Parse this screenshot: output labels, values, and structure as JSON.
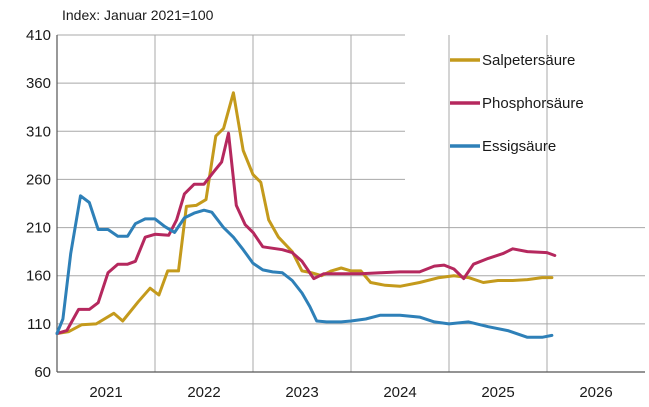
{
  "chart_data": {
    "type": "line",
    "subtitle": "Index: Januar 2021=100",
    "ylim": [
      60,
      410
    ],
    "y_ticks": [
      60,
      110,
      160,
      210,
      260,
      310,
      360,
      410
    ],
    "x_ticks": [
      "2021",
      "2022",
      "2023",
      "2024",
      "2025",
      "2026"
    ],
    "xlim": [
      2021.0,
      2027.0
    ],
    "grid": true,
    "legend_position": "top-right",
    "series": [
      {
        "name": "Salpetersäure",
        "color": "#c49a1c",
        "points": [
          [
            2021.0,
            100
          ],
          [
            2021.12,
            102
          ],
          [
            2021.25,
            109
          ],
          [
            2021.4,
            110
          ],
          [
            2021.58,
            121
          ],
          [
            2021.67,
            113
          ],
          [
            2021.83,
            133
          ],
          [
            2021.95,
            147
          ],
          [
            2022.04,
            140
          ],
          [
            2022.13,
            165
          ],
          [
            2022.24,
            165
          ],
          [
            2022.32,
            232
          ],
          [
            2022.42,
            233
          ],
          [
            2022.52,
            239
          ],
          [
            2022.62,
            305
          ],
          [
            2022.7,
            313
          ],
          [
            2022.8,
            350
          ],
          [
            2022.9,
            290
          ],
          [
            2023.0,
            265
          ],
          [
            2023.08,
            257
          ],
          [
            2023.16,
            218
          ],
          [
            2023.26,
            200
          ],
          [
            2023.4,
            185
          ],
          [
            2023.5,
            165
          ],
          [
            2023.6,
            163
          ],
          [
            2023.7,
            160
          ],
          [
            2023.8,
            165
          ],
          [
            2023.9,
            168
          ],
          [
            2024.0,
            165
          ],
          [
            2024.1,
            165
          ],
          [
            2024.2,
            153
          ],
          [
            2024.35,
            150
          ],
          [
            2024.5,
            149
          ],
          [
            2024.7,
            153
          ],
          [
            2024.9,
            158
          ],
          [
            2025.05,
            160
          ],
          [
            2025.2,
            158
          ],
          [
            2025.35,
            153
          ],
          [
            2025.5,
            155
          ],
          [
            2025.65,
            155
          ],
          [
            2025.8,
            156
          ],
          [
            2025.95,
            158
          ],
          [
            2026.05,
            158
          ]
        ]
      },
      {
        "name": "Phosphorsäure",
        "color": "#b5285e",
        "points": [
          [
            2021.0,
            100
          ],
          [
            2021.1,
            103
          ],
          [
            2021.22,
            125
          ],
          [
            2021.33,
            125
          ],
          [
            2021.42,
            132
          ],
          [
            2021.52,
            163
          ],
          [
            2021.62,
            172
          ],
          [
            2021.72,
            172
          ],
          [
            2021.8,
            175
          ],
          [
            2021.9,
            200
          ],
          [
            2022.0,
            203
          ],
          [
            2022.14,
            202
          ],
          [
            2022.22,
            218
          ],
          [
            2022.3,
            245
          ],
          [
            2022.4,
            255
          ],
          [
            2022.5,
            255
          ],
          [
            2022.6,
            268
          ],
          [
            2022.68,
            278
          ],
          [
            2022.75,
            308
          ],
          [
            2022.83,
            233
          ],
          [
            2022.92,
            213
          ],
          [
            2023.0,
            205
          ],
          [
            2023.1,
            190
          ],
          [
            2023.3,
            187
          ],
          [
            2023.4,
            184
          ],
          [
            2023.5,
            175
          ],
          [
            2023.62,
            157
          ],
          [
            2023.72,
            162
          ],
          [
            2023.82,
            162
          ],
          [
            2023.95,
            162
          ],
          [
            2024.1,
            162
          ],
          [
            2024.3,
            163
          ],
          [
            2024.5,
            164
          ],
          [
            2024.7,
            164
          ],
          [
            2024.85,
            170
          ],
          [
            2024.95,
            171
          ],
          [
            2025.05,
            167
          ],
          [
            2025.15,
            157
          ],
          [
            2025.25,
            172
          ],
          [
            2025.4,
            178
          ],
          [
            2025.55,
            183
          ],
          [
            2025.65,
            188
          ],
          [
            2025.8,
            185
          ],
          [
            2026.0,
            184
          ],
          [
            2026.08,
            181
          ]
        ]
      },
      {
        "name": "Essigsäure",
        "color": "#2e80b8",
        "points": [
          [
            2021.0,
            100
          ],
          [
            2021.06,
            115
          ],
          [
            2021.14,
            183
          ],
          [
            2021.24,
            243
          ],
          [
            2021.33,
            236
          ],
          [
            2021.42,
            208
          ],
          [
            2021.52,
            208
          ],
          [
            2021.62,
            201
          ],
          [
            2021.72,
            201
          ],
          [
            2021.8,
            214
          ],
          [
            2021.9,
            219
          ],
          [
            2022.0,
            219
          ],
          [
            2022.1,
            211
          ],
          [
            2022.2,
            205
          ],
          [
            2022.3,
            220
          ],
          [
            2022.4,
            225
          ],
          [
            2022.5,
            228
          ],
          [
            2022.58,
            226
          ],
          [
            2022.7,
            210
          ],
          [
            2022.8,
            200
          ],
          [
            2022.9,
            187
          ],
          [
            2023.0,
            173
          ],
          [
            2023.1,
            166
          ],
          [
            2023.2,
            164
          ],
          [
            2023.3,
            163
          ],
          [
            2023.4,
            155
          ],
          [
            2023.5,
            142
          ],
          [
            2023.58,
            128
          ],
          [
            2023.65,
            113
          ],
          [
            2023.75,
            112
          ],
          [
            2023.9,
            112
          ],
          [
            2024.0,
            113
          ],
          [
            2024.15,
            115
          ],
          [
            2024.3,
            119
          ],
          [
            2024.5,
            119
          ],
          [
            2024.7,
            117
          ],
          [
            2024.85,
            112
          ],
          [
            2025.0,
            110
          ],
          [
            2025.2,
            112
          ],
          [
            2025.4,
            107
          ],
          [
            2025.6,
            103
          ],
          [
            2025.8,
            96
          ],
          [
            2025.95,
            96
          ],
          [
            2026.05,
            98
          ]
        ]
      }
    ]
  }
}
